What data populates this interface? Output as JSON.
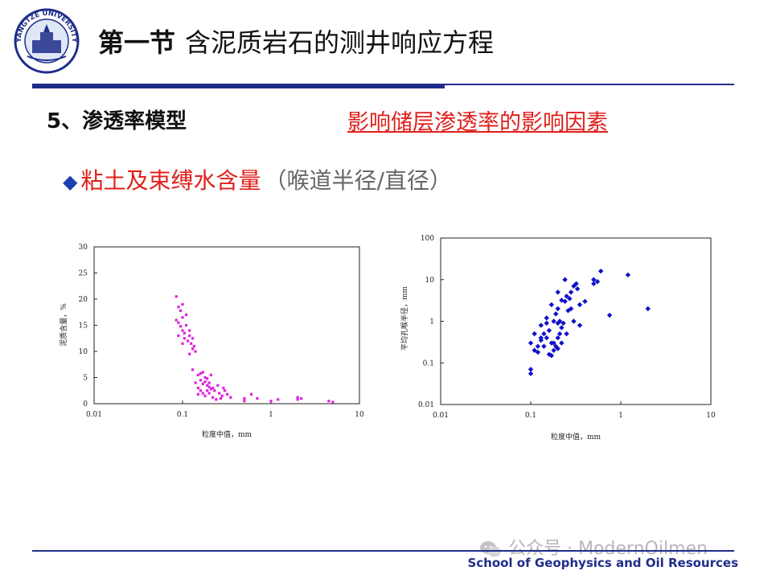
{
  "header": {
    "logo_text": "YANGTZE UNIVERSITY",
    "logo_seal_text": "长江大学",
    "title_bold": "第一节",
    "title_rest": "含泥质岩石的测井响应方程"
  },
  "section": {
    "heading": "5、渗透率模型",
    "factors_title": "影响储层渗透率的影响因素",
    "bullet_main": "粘土及束缚水含量",
    "bullet_note": "（喉道半径/直径）"
  },
  "colors": {
    "navy": "#1f2d8a",
    "red": "#e0201c",
    "magenta": "#e020e0",
    "blue": "#1010c8"
  },
  "chart_data": [
    {
      "type": "scatter",
      "xscale": "log",
      "xlim": [
        0.01,
        10
      ],
      "ylim": [
        0,
        30
      ],
      "xlabel": "粒度中值，mm",
      "ylabel": "泥质含量，%",
      "xticks": [
        "0.01",
        "0.1",
        "1",
        "10"
      ],
      "yticks": [
        "0",
        "5",
        "10",
        "15",
        "20",
        "25",
        "30"
      ],
      "marker_color": "#e020e0",
      "points": [
        [
          0.085,
          20.5
        ],
        [
          0.09,
          18.5
        ],
        [
          0.095,
          17.8
        ],
        [
          0.1,
          19
        ],
        [
          0.085,
          16
        ],
        [
          0.09,
          15.5
        ],
        [
          0.1,
          14
        ],
        [
          0.105,
          13.5
        ],
        [
          0.11,
          15
        ],
        [
          0.095,
          14.8
        ],
        [
          0.12,
          13
        ],
        [
          0.115,
          12
        ],
        [
          0.125,
          11.5
        ],
        [
          0.13,
          12.5
        ],
        [
          0.1,
          16.5
        ],
        [
          0.11,
          17
        ],
        [
          0.12,
          14
        ],
        [
          0.13,
          10.5
        ],
        [
          0.14,
          10
        ],
        [
          0.105,
          12.5
        ],
        [
          0.135,
          11
        ],
        [
          0.09,
          13
        ],
        [
          0.1,
          11.5
        ],
        [
          0.12,
          9.5
        ],
        [
          0.13,
          6.5
        ],
        [
          0.15,
          5.5
        ],
        [
          0.16,
          4.5
        ],
        [
          0.17,
          6
        ],
        [
          0.18,
          5
        ],
        [
          0.19,
          3.5
        ],
        [
          0.2,
          4
        ],
        [
          0.21,
          5.5
        ],
        [
          0.22,
          3
        ],
        [
          0.15,
          3
        ],
        [
          0.16,
          2.5
        ],
        [
          0.17,
          2
        ],
        [
          0.18,
          1.5
        ],
        [
          0.19,
          2.5
        ],
        [
          0.2,
          2
        ],
        [
          0.23,
          2.5
        ],
        [
          0.25,
          3.5
        ],
        [
          0.26,
          2
        ],
        [
          0.28,
          1.5
        ],
        [
          0.3,
          2.5
        ],
        [
          0.32,
          1.8
        ],
        [
          0.35,
          1.2
        ],
        [
          0.16,
          5.8
        ],
        [
          0.18,
          4.2
        ],
        [
          0.2,
          3.2
        ],
        [
          0.22,
          1.2
        ],
        [
          0.24,
          0.8
        ],
        [
          0.15,
          1.8
        ],
        [
          0.17,
          3.8
        ],
        [
          0.19,
          4.8
        ],
        [
          0.21,
          2.8
        ],
        [
          0.14,
          4
        ],
        [
          0.27,
          1
        ],
        [
          0.29,
          3
        ],
        [
          0.5,
          1
        ],
        [
          0.5,
          0.5
        ],
        [
          0.6,
          1.8
        ],
        [
          0.7,
          1
        ],
        [
          1,
          0.5
        ],
        [
          1.2,
          0.8
        ],
        [
          2,
          0.8
        ],
        [
          2,
          1.2
        ],
        [
          2.2,
          1
        ],
        [
          4.5,
          0.5
        ],
        [
          5,
          0.3
        ]
      ]
    },
    {
      "type": "scatter",
      "xscale": "log",
      "yscale": "log",
      "xlim": [
        0.01,
        10
      ],
      "ylim": [
        0.01,
        100
      ],
      "xlabel": "粒度中值，mm",
      "ylabel": "平均孔喉半径，mm",
      "xticks": [
        "0.01",
        "0.1",
        "1",
        "10"
      ],
      "yticks": [
        "0.01",
        "0.1",
        "1",
        "10",
        "100"
      ],
      "marker_color": "#1010c8",
      "points": [
        [
          0.1,
          0.055
        ],
        [
          0.1,
          0.07
        ],
        [
          0.11,
          0.2
        ],
        [
          0.1,
          0.3
        ],
        [
          0.12,
          0.25
        ],
        [
          0.13,
          0.35
        ],
        [
          0.14,
          0.5
        ],
        [
          0.15,
          0.4
        ],
        [
          0.12,
          0.18
        ],
        [
          0.11,
          0.5
        ],
        [
          0.13,
          0.8
        ],
        [
          0.15,
          0.9
        ],
        [
          0.16,
          0.6
        ],
        [
          0.17,
          0.3
        ],
        [
          0.18,
          0.2
        ],
        [
          0.16,
          0.16
        ],
        [
          0.17,
          0.15
        ],
        [
          0.19,
          0.25
        ],
        [
          0.2,
          0.4
        ],
        [
          0.21,
          0.5
        ],
        [
          0.22,
          0.7
        ],
        [
          0.18,
          1
        ],
        [
          0.19,
          1.5
        ],
        [
          0.2,
          2
        ],
        [
          0.21,
          1
        ],
        [
          0.23,
          0.9
        ],
        [
          0.25,
          0.5
        ],
        [
          0.22,
          0.3
        ],
        [
          0.2,
          0.22
        ],
        [
          0.18,
          0.3
        ],
        [
          0.14,
          0.25
        ],
        [
          0.13,
          0.4
        ],
        [
          0.24,
          3
        ],
        [
          0.25,
          4
        ],
        [
          0.27,
          3.5
        ],
        [
          0.28,
          5
        ],
        [
          0.3,
          7
        ],
        [
          0.32,
          8
        ],
        [
          0.33,
          6
        ],
        [
          0.28,
          2
        ],
        [
          0.26,
          1.8
        ],
        [
          0.3,
          1
        ],
        [
          0.35,
          0.8
        ],
        [
          0.35,
          2.5
        ],
        [
          0.4,
          3
        ],
        [
          0.2,
          5
        ],
        [
          0.22,
          3.2
        ],
        [
          0.15,
          1.2
        ],
        [
          0.17,
          2.5
        ],
        [
          0.2,
          0.9
        ],
        [
          0.5,
          8
        ],
        [
          0.55,
          9
        ],
        [
          0.6,
          16
        ],
        [
          0.5,
          10
        ],
        [
          0.75,
          1.4
        ],
        [
          1.2,
          13
        ],
        [
          2,
          2
        ],
        [
          0.24,
          10
        ]
      ]
    }
  ],
  "footer": {
    "school": "School of Geophysics and Oil Resources",
    "watermark": "公众号 · ModernOilmen"
  }
}
